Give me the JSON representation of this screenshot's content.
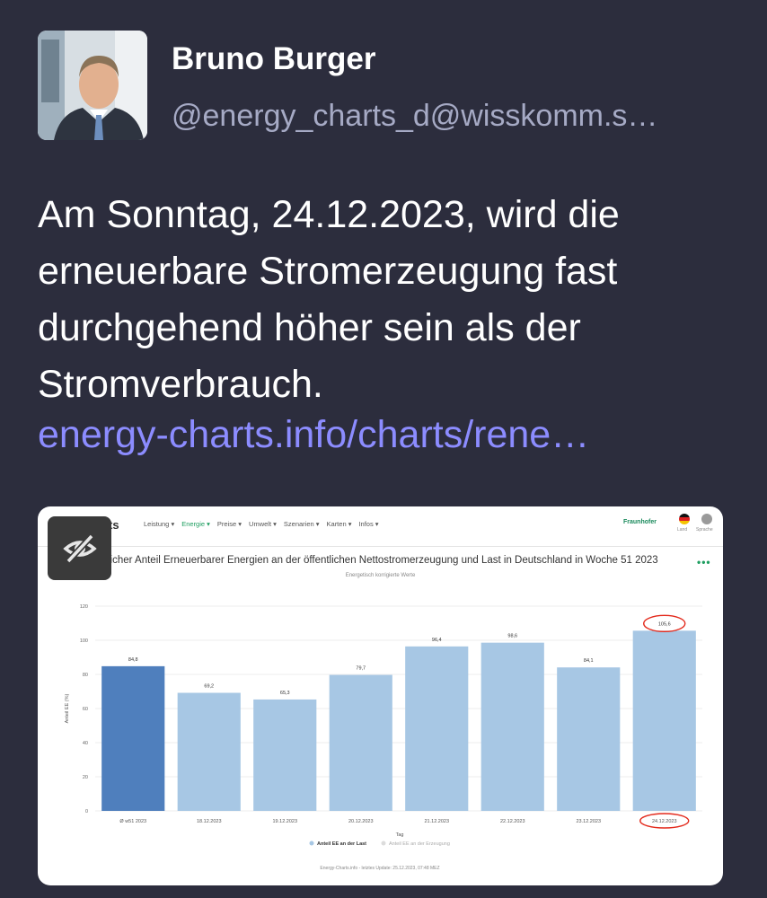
{
  "post": {
    "author_name": "Bruno Burger",
    "author_handle": "@energy_charts_d@wisskomm.s…",
    "text": "Am Sonntag, 24.12.2023, wird die erneuerbare Stromerzeugung fast durchgehend höher sein als der Stromverbrauch.",
    "link_text": "energy-charts.info/charts/rene…"
  },
  "media": {
    "sensitive_icon": "eye-slash-icon",
    "navbar": {
      "brand": "rts",
      "items": [
        "Leistung ▾",
        "Energie ▾",
        "Preise ▾",
        "Umwelt ▾",
        "Szenarien ▾",
        "Karten ▾",
        "Infos ▾"
      ],
      "active_item": "Energie ▾",
      "partner": "Fraunhofer",
      "land_label": "Land",
      "sprache_label": "Sprache"
    },
    "menu_glyph": "•••",
    "footer": "Energy-Charts.info - letztes Update: 25.12.2023, 07:48 MEZ"
  },
  "chart_data": {
    "type": "bar",
    "title": "licher Anteil Erneuerbarer Energien an der öffentlichen Nettostromerzeugung und Last in Deutschland in Woche 51 2023",
    "subtitle": "Energetisch korrigierte Werte",
    "xlabel": "Tag",
    "ylabel": "Anteil EE (%)",
    "ylim": [
      0,
      120
    ],
    "yticks": [
      0,
      20,
      40,
      60,
      80,
      100,
      120
    ],
    "grid": true,
    "categories": [
      "Ø w51 2023",
      "18.12.2023",
      "19.12.2023",
      "20.12.2023",
      "21.12.2023",
      "22.12.2023",
      "23.12.2023",
      "24.12.2023"
    ],
    "values": [
      84.8,
      69.2,
      65.3,
      79.7,
      96.4,
      98.6,
      84.1,
      105.6
    ],
    "value_labels": [
      "84,8",
      "69,2",
      "65,3",
      "79,7",
      "96,4",
      "98,6",
      "84,1",
      "105,6"
    ],
    "legend": [
      {
        "name": "Anteil EE an der Last",
        "color": "#a7c7e4"
      },
      {
        "name": "Anteil EE an der Erzeugung",
        "color": "#dcdcdc"
      }
    ],
    "legend_position": "bottom",
    "colors": {
      "highlight": "#4f7fbd",
      "bar": "#a7c7e4",
      "annotation": "#e32a1c"
    },
    "annotations": [
      "circled value 105,6",
      "circled label 24.12.2023"
    ]
  }
}
